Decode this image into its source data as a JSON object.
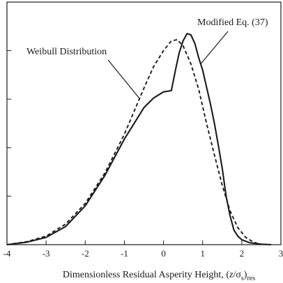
{
  "chart_data": {
    "type": "line",
    "title": "",
    "xlabel": {
      "main": "Dimensionless Residual Asperity Height, (",
      "z": "z",
      "slash": "/σ",
      "s": "s",
      "close": ")",
      "res": "res"
    },
    "ylabel": "",
    "xlim": [
      -4,
      3
    ],
    "ylim": [
      0,
      1
    ],
    "x_ticks": [
      -4,
      -3,
      -2,
      -1,
      0,
      1,
      2,
      3
    ],
    "x_tick_labels": [
      "-4",
      "-3",
      "-2",
      "-1",
      "0",
      "1",
      "2",
      "3"
    ],
    "y_ticks": [
      0.2,
      0.4,
      0.6,
      0.8
    ],
    "y_tick_labels": [
      "",
      "",
      "",
      ""
    ],
    "grid": false,
    "legend": "none",
    "series": [
      {
        "name": "Modified Eq. (37)",
        "style": "solid",
        "color": "#1a1a1a",
        "points": [
          [
            -4.0,
            0.0
          ],
          [
            -3.5,
            0.01
          ],
          [
            -3.0,
            0.03
          ],
          [
            -2.5,
            0.075
          ],
          [
            -2.0,
            0.16
          ],
          [
            -1.5,
            0.285
          ],
          [
            -1.0,
            0.435
          ],
          [
            -0.5,
            0.565
          ],
          [
            -0.25,
            0.605
          ],
          [
            0.0,
            0.63
          ],
          [
            0.2,
            0.635
          ],
          [
            0.3,
            0.715
          ],
          [
            0.4,
            0.79
          ],
          [
            0.5,
            0.84
          ],
          [
            0.6,
            0.87
          ],
          [
            0.7,
            0.865
          ],
          [
            0.8,
            0.83
          ],
          [
            0.9,
            0.77
          ],
          [
            1.0,
            0.72
          ],
          [
            1.1,
            0.65
          ],
          [
            1.2,
            0.58
          ],
          [
            1.3,
            0.5
          ],
          [
            1.4,
            0.41
          ],
          [
            1.5,
            0.315
          ],
          [
            1.6,
            0.2
          ],
          [
            1.7,
            0.12
          ],
          [
            1.8,
            0.06
          ],
          [
            1.9,
            0.035
          ],
          [
            2.0,
            0.02
          ],
          [
            2.2,
            0.008
          ],
          [
            2.5,
            0.002
          ],
          [
            2.75,
            0.0
          ]
        ]
      },
      {
        "name": "Weibull Distribution",
        "style": "dashed",
        "color": "#1a1a1a",
        "points": [
          [
            -4.0,
            0.0
          ],
          [
            -3.5,
            0.012
          ],
          [
            -3.0,
            0.035
          ],
          [
            -2.5,
            0.085
          ],
          [
            -2.0,
            0.17
          ],
          [
            -1.5,
            0.295
          ],
          [
            -1.0,
            0.455
          ],
          [
            -0.5,
            0.645
          ],
          [
            -0.25,
            0.735
          ],
          [
            0.0,
            0.8
          ],
          [
            0.2,
            0.84
          ],
          [
            0.35,
            0.845
          ],
          [
            0.5,
            0.82
          ],
          [
            0.7,
            0.745
          ],
          [
            0.9,
            0.64
          ],
          [
            1.1,
            0.5
          ],
          [
            1.3,
            0.37
          ],
          [
            1.5,
            0.245
          ],
          [
            1.7,
            0.14
          ],
          [
            1.9,
            0.07
          ],
          [
            2.1,
            0.03
          ],
          [
            2.3,
            0.01
          ],
          [
            2.5,
            0.0
          ]
        ]
      }
    ],
    "annotations": [
      {
        "text": "Weibull Distribution",
        "target_series": "Weibull Distribution",
        "target": [
          -0.6,
          0.6
        ]
      },
      {
        "text": "Modified Eq. (37)",
        "target_series": "Modified Eq. (37)",
        "target": [
          0.95,
          0.745
        ]
      }
    ]
  }
}
